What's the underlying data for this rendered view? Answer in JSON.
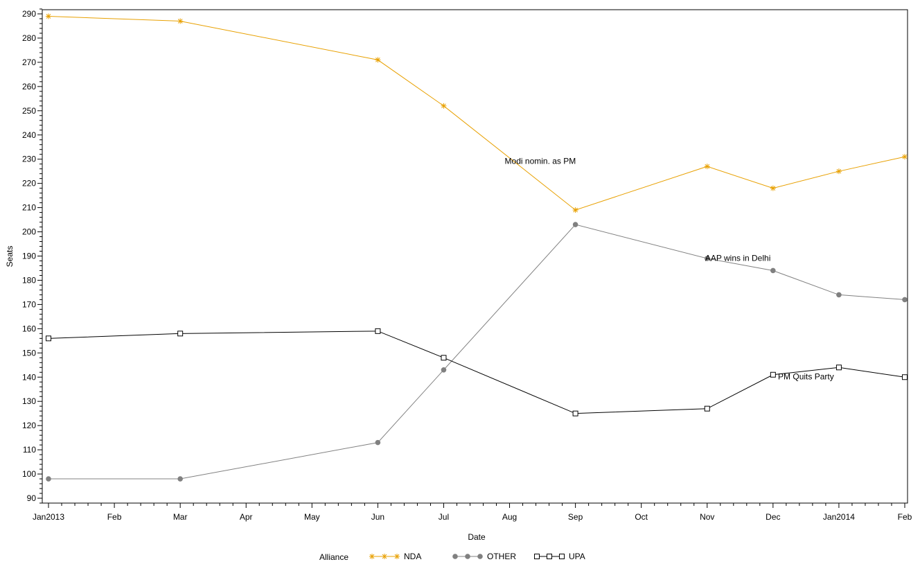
{
  "chart_data": {
    "type": "line",
    "title": "",
    "xlabel": "Date",
    "ylabel": "Seats",
    "ylim": [
      88,
      292
    ],
    "yticks": [
      90,
      100,
      110,
      120,
      130,
      140,
      150,
      160,
      170,
      180,
      190,
      200,
      210,
      220,
      230,
      240,
      250,
      260,
      270,
      280,
      290
    ],
    "xrange": [
      "2013-01",
      "2014-02"
    ],
    "xticks": [
      {
        "x": "2013-01",
        "label": "Jan2013"
      },
      {
        "x": "2013-02",
        "label": "Feb"
      },
      {
        "x": "2013-03",
        "label": "Mar"
      },
      {
        "x": "2013-04",
        "label": "Apr"
      },
      {
        "x": "2013-05",
        "label": "May"
      },
      {
        "x": "2013-06",
        "label": "Jun"
      },
      {
        "x": "2013-07",
        "label": "Jul"
      },
      {
        "x": "2013-08",
        "label": "Aug"
      },
      {
        "x": "2013-09",
        "label": "Sep"
      },
      {
        "x": "2013-10",
        "label": "Oct"
      },
      {
        "x": "2013-11",
        "label": "Nov"
      },
      {
        "x": "2013-12",
        "label": "Dec"
      },
      {
        "x": "2014-01",
        "label": "Jan2014"
      },
      {
        "x": "2014-02",
        "label": "Feb"
      }
    ],
    "x": [
      "2013-01",
      "2013-03",
      "2013-06",
      "2013-07",
      "2013-09",
      "2013-11",
      "2013-12",
      "2014-01",
      "2014-02"
    ],
    "series": [
      {
        "name": "NDA",
        "color": "#e8a000",
        "marker": "star",
        "values": [
          289,
          287,
          271,
          252,
          209,
          227,
          218,
          225,
          231
        ]
      },
      {
        "name": "OTHER",
        "color": "#808080",
        "marker": "dot",
        "values": [
          98,
          98,
          113,
          143,
          203,
          189,
          184,
          174,
          172
        ]
      },
      {
        "name": "UPA",
        "color": "#000000",
        "marker": "square",
        "values": [
          156,
          158,
          159,
          148,
          125,
          127,
          141,
          144,
          140
        ]
      }
    ],
    "annotations": [
      {
        "text": "Modi nomin. as PM",
        "x": "2013-08-15",
        "y": 228
      },
      {
        "text": "AAP wins in Delhi",
        "x": "2013-11-15",
        "y": 188
      },
      {
        "text": "PM Quits Party",
        "x": "2013-12-16",
        "y": 139
      }
    ],
    "legend": {
      "title": "Alliance",
      "position": "bottom"
    },
    "grid": false
  }
}
